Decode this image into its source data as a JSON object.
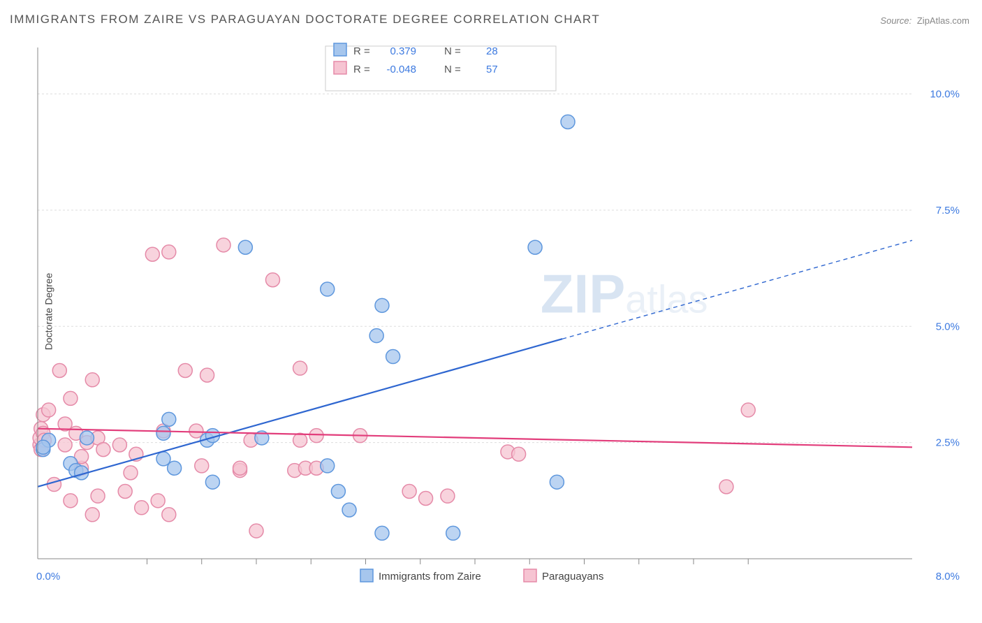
{
  "title": "IMMIGRANTS FROM ZAIRE VS PARAGUAYAN DOCTORATE DEGREE CORRELATION CHART",
  "source": {
    "label": "Source:",
    "name": "ZipAtlas.com"
  },
  "ylabel": "Doctorate Degree",
  "watermark": {
    "part1": "ZIP",
    "part2": "atlas"
  },
  "chart": {
    "type": "scatter",
    "background_color": "#ffffff",
    "grid_color": "#dddddd",
    "axis_color": "#888888",
    "axis_stroke_width": 1,
    "tick_color": "#888888",
    "xlim": [
      0.0,
      8.0
    ],
    "ylim": [
      0.0,
      11.0
    ],
    "xticks": [
      0.0,
      8.0
    ],
    "xtick_labels": [
      "0.0%",
      "8.0%"
    ],
    "xminor": [
      1.0,
      1.5,
      2.0,
      2.5,
      3.0,
      3.5,
      4.0,
      4.5,
      5.0,
      5.5,
      6.0,
      6.5
    ],
    "yticks": [
      2.5,
      5.0,
      7.5,
      10.0
    ],
    "ytick_labels": [
      "2.5%",
      "5.0%",
      "7.5%",
      "10.0%"
    ],
    "marker_radius": 10,
    "marker_stroke_width": 1.5,
    "line_width": 2.2,
    "series": [
      {
        "key": "zaire",
        "legend_label": "Immigrants from Zaire",
        "color_fill": "#a6c6ed",
        "color_stroke": "#5e97dd",
        "line_color": "#2e66d0",
        "R_label": "R =",
        "R": "0.379",
        "N_label": "N =",
        "N": "28",
        "trend": {
          "x1": 0.0,
          "y1": 1.55,
          "x2": 8.0,
          "y2": 6.85,
          "solid_until_x": 4.8
        },
        "points": [
          [
            0.05,
            2.35
          ],
          [
            0.1,
            2.55
          ],
          [
            0.3,
            2.05
          ],
          [
            0.35,
            1.9
          ],
          [
            0.4,
            1.85
          ],
          [
            0.45,
            2.6
          ],
          [
            1.15,
            2.7
          ],
          [
            1.15,
            2.15
          ],
          [
            1.2,
            3.0
          ],
          [
            1.25,
            1.95
          ],
          [
            1.55,
            2.55
          ],
          [
            1.6,
            1.65
          ],
          [
            1.6,
            2.65
          ],
          [
            1.9,
            6.7
          ],
          [
            2.05,
            2.6
          ],
          [
            2.65,
            5.8
          ],
          [
            2.65,
            2.0
          ],
          [
            2.75,
            1.45
          ],
          [
            2.85,
            1.05
          ],
          [
            3.1,
            4.8
          ],
          [
            3.15,
            0.55
          ],
          [
            3.15,
            5.45
          ],
          [
            3.25,
            4.35
          ],
          [
            3.8,
            0.55
          ],
          [
            4.55,
            6.7
          ],
          [
            4.75,
            1.65
          ],
          [
            4.85,
            9.4
          ],
          [
            0.05,
            2.4
          ]
        ]
      },
      {
        "key": "paraguay",
        "legend_label": "Paraguayans",
        "color_fill": "#f6c4d2",
        "color_stroke": "#e58aa8",
        "line_color": "#e23d7b",
        "R_label": "R =",
        "R": "-0.048",
        "N_label": "N =",
        "N": "57",
        "trend": {
          "x1": 0.0,
          "y1": 2.8,
          "x2": 8.0,
          "y2": 2.4,
          "solid_until_x": 8.0
        },
        "points": [
          [
            0.02,
            2.45
          ],
          [
            0.02,
            2.6
          ],
          [
            0.03,
            2.8
          ],
          [
            0.03,
            2.35
          ],
          [
            0.05,
            2.7
          ],
          [
            0.05,
            3.1
          ],
          [
            0.1,
            3.2
          ],
          [
            0.15,
            1.6
          ],
          [
            0.2,
            4.05
          ],
          [
            0.25,
            2.45
          ],
          [
            0.25,
            2.9
          ],
          [
            0.3,
            3.45
          ],
          [
            0.3,
            1.25
          ],
          [
            0.35,
            2.7
          ],
          [
            0.4,
            1.95
          ],
          [
            0.4,
            2.2
          ],
          [
            0.45,
            2.5
          ],
          [
            0.5,
            0.95
          ],
          [
            0.5,
            3.85
          ],
          [
            0.55,
            2.6
          ],
          [
            0.55,
            1.35
          ],
          [
            0.6,
            2.35
          ],
          [
            0.75,
            2.45
          ],
          [
            0.8,
            1.45
          ],
          [
            0.85,
            1.85
          ],
          [
            0.9,
            2.25
          ],
          [
            0.95,
            1.1
          ],
          [
            1.05,
            6.55
          ],
          [
            1.1,
            1.25
          ],
          [
            1.15,
            2.75
          ],
          [
            1.2,
            6.6
          ],
          [
            1.2,
            0.95
          ],
          [
            1.35,
            4.05
          ],
          [
            1.45,
            2.75
          ],
          [
            1.5,
            2.0
          ],
          [
            1.55,
            3.95
          ],
          [
            1.7,
            6.75
          ],
          [
            1.85,
            1.9
          ],
          [
            1.85,
            1.95
          ],
          [
            1.95,
            2.55
          ],
          [
            2.0,
            0.6
          ],
          [
            2.15,
            6.0
          ],
          [
            2.35,
            1.9
          ],
          [
            2.4,
            4.1
          ],
          [
            2.4,
            2.55
          ],
          [
            2.45,
            1.95
          ],
          [
            2.55,
            2.65
          ],
          [
            2.55,
            1.95
          ],
          [
            2.95,
            2.65
          ],
          [
            3.4,
            1.45
          ],
          [
            3.55,
            1.3
          ],
          [
            3.75,
            1.35
          ],
          [
            4.3,
            2.3
          ],
          [
            4.4,
            2.25
          ],
          [
            6.3,
            1.55
          ],
          [
            6.5,
            3.2
          ],
          [
            0.06,
            2.55
          ]
        ]
      }
    ],
    "stats_legend": {
      "swatch_size": 18
    },
    "bottom_legend": {
      "swatch_size": 18
    }
  }
}
